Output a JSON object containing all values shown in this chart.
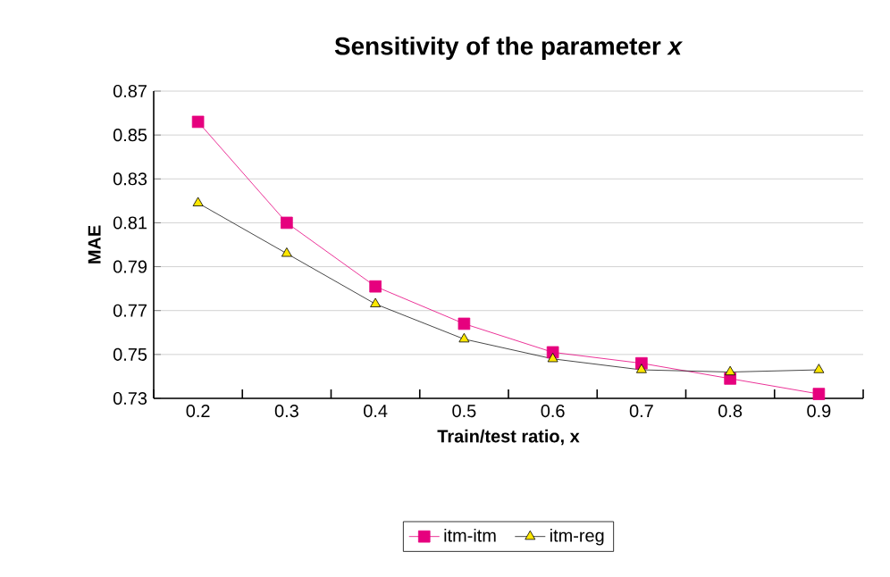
{
  "chart_data": {
    "type": "line",
    "title": "Sensitivity of the parameter *x*",
    "xlabel": "Train/test ratio, x",
    "ylabel": "MAE",
    "categories": [
      "0.2",
      "0.3",
      "0.4",
      "0.5",
      "0.6",
      "0.7",
      "0.8",
      "0.9"
    ],
    "series": [
      {
        "name": "itm-itm",
        "color": "#e6007e",
        "marker": "square",
        "values": [
          0.856,
          0.81,
          0.781,
          0.764,
          0.751,
          0.746,
          0.739,
          0.732
        ]
      },
      {
        "name": "itm-reg",
        "color": "#1a1a1a",
        "marker": "triangle",
        "values": [
          0.819,
          0.796,
          0.773,
          0.757,
          0.748,
          0.743,
          0.742,
          0.743
        ]
      }
    ],
    "ylim": [
      0.73,
      0.87
    ],
    "yticks": [
      0.73,
      0.75,
      0.77,
      0.79,
      0.81,
      0.83,
      0.85,
      0.87
    ],
    "grid": "y",
    "legend": "bottom",
    "line_style": "solid"
  }
}
